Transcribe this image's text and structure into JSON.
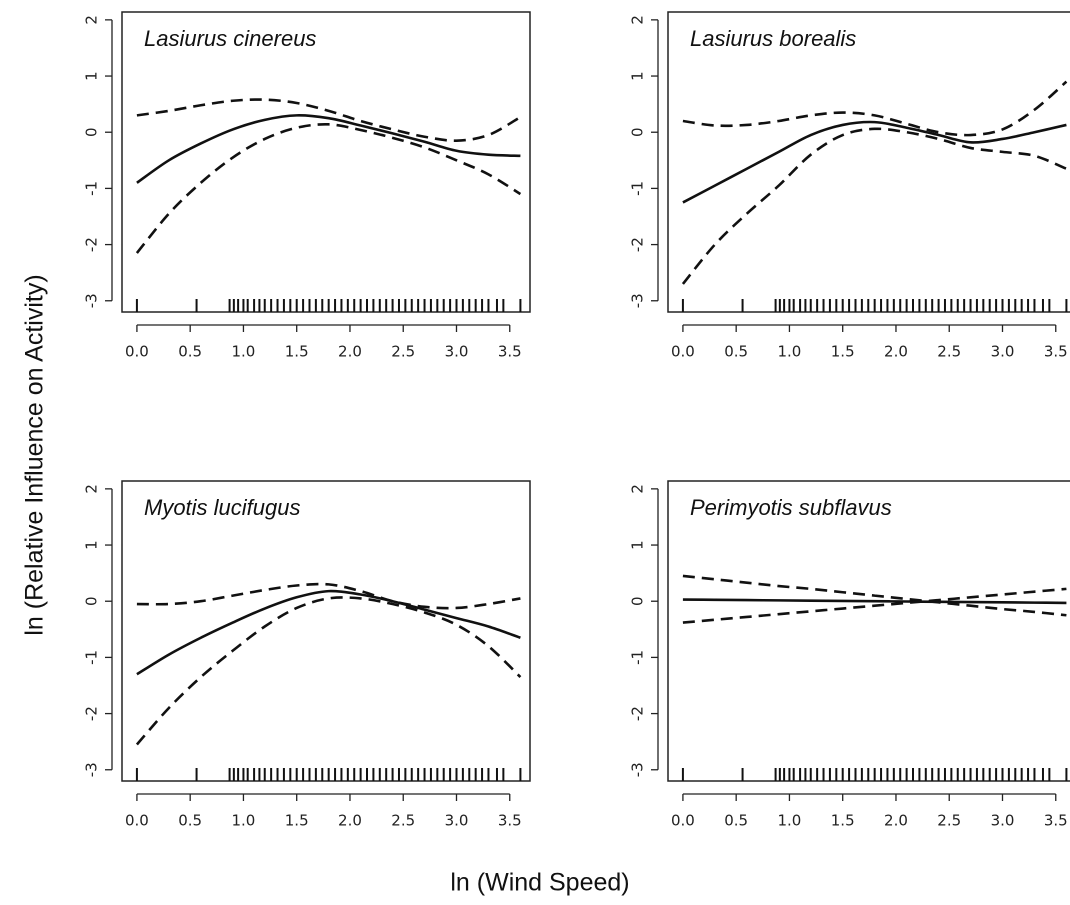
{
  "ylabel": "ln (Relative Influence on Activity)",
  "xlabel": "ln (Wind Speed)",
  "chart_data": [
    {
      "type": "line",
      "title": "Lasiurus cinereus",
      "x": [
        0,
        0.3,
        0.6,
        0.9,
        1.2,
        1.5,
        1.8,
        2.1,
        2.4,
        2.7,
        3.0,
        3.3,
        3.6
      ],
      "series": [
        {
          "style": "solid",
          "color": "#111111",
          "values": [
            -0.9,
            -0.5,
            -0.2,
            0.05,
            0.22,
            0.3,
            0.25,
            0.12,
            -0.02,
            -0.17,
            -0.33,
            -0.4,
            -0.42
          ]
        },
        {
          "style": "dashed",
          "color": "#111111",
          "values": [
            0.3,
            0.38,
            0.48,
            0.56,
            0.58,
            0.52,
            0.38,
            0.2,
            0.05,
            -0.08,
            -0.15,
            -0.05,
            0.27
          ]
        },
        {
          "style": "dashed",
          "color": "#111111",
          "values": [
            -2.15,
            -1.45,
            -0.9,
            -0.45,
            -0.12,
            0.08,
            0.14,
            0.04,
            -0.1,
            -0.27,
            -0.5,
            -0.75,
            -1.1
          ]
        }
      ],
      "rug": [
        0,
        0.56,
        0.87,
        0.91,
        0.95,
        1.0,
        1.04,
        1.1,
        1.15,
        1.2,
        1.26,
        1.32,
        1.38,
        1.44,
        1.5,
        1.56,
        1.62,
        1.68,
        1.74,
        1.8,
        1.86,
        1.92,
        1.98,
        2.04,
        2.1,
        2.16,
        2.22,
        2.28,
        2.34,
        2.4,
        2.46,
        2.52,
        2.58,
        2.64,
        2.7,
        2.76,
        2.82,
        2.88,
        2.94,
        3.0,
        3.06,
        3.12,
        3.18,
        3.24,
        3.3,
        3.38,
        3.44,
        3.6
      ],
      "xlim": [
        -0.14,
        3.69
      ],
      "ylim": [
        -3.2,
        2.14
      ],
      "xticks": [
        {
          "value": 0,
          "label": "0.0"
        },
        0.5,
        {
          "value": 1,
          "label": "1.0"
        },
        1.5,
        {
          "value": 2,
          "label": "2.0"
        },
        2.5,
        {
          "value": 3,
          "label": "3.0"
        },
        3.5
      ],
      "yticks": [
        -3,
        -2,
        -1,
        0,
        1,
        2
      ]
    },
    {
      "type": "line",
      "title": "Lasiurus borealis",
      "x": [
        0,
        0.3,
        0.6,
        0.9,
        1.2,
        1.5,
        1.8,
        2.1,
        2.4,
        2.7,
        3.0,
        3.3,
        3.6
      ],
      "series": [
        {
          "style": "solid",
          "color": "#111111",
          "values": [
            -1.25,
            -0.95,
            -0.65,
            -0.35,
            -0.05,
            0.13,
            0.18,
            0.08,
            -0.05,
            -0.18,
            -0.12,
            0.0,
            0.13
          ]
        },
        {
          "style": "dashed",
          "color": "#111111",
          "values": [
            0.2,
            0.12,
            0.13,
            0.2,
            0.3,
            0.35,
            0.3,
            0.15,
            0.0,
            -0.05,
            0.05,
            0.4,
            0.9
          ]
        },
        {
          "style": "dashed",
          "color": "#111111",
          "values": [
            -2.7,
            -2.0,
            -1.45,
            -0.95,
            -0.4,
            -0.05,
            0.06,
            0.0,
            -0.12,
            -0.28,
            -0.35,
            -0.42,
            -0.65
          ]
        }
      ],
      "rug": [
        0,
        0.56,
        0.87,
        0.91,
        0.95,
        1.0,
        1.04,
        1.1,
        1.15,
        1.2,
        1.26,
        1.32,
        1.38,
        1.44,
        1.5,
        1.56,
        1.62,
        1.68,
        1.74,
        1.8,
        1.86,
        1.92,
        1.98,
        2.04,
        2.1,
        2.16,
        2.22,
        2.28,
        2.34,
        2.4,
        2.46,
        2.52,
        2.58,
        2.64,
        2.7,
        2.76,
        2.82,
        2.88,
        2.94,
        3.0,
        3.06,
        3.12,
        3.18,
        3.24,
        3.3,
        3.38,
        3.44,
        3.6
      ],
      "xlim": [
        -0.14,
        3.69
      ],
      "ylim": [
        -3.2,
        2.14
      ],
      "xticks": [
        {
          "value": 0,
          "label": "0.0"
        },
        0.5,
        {
          "value": 1,
          "label": "1.0"
        },
        1.5,
        {
          "value": 2,
          "label": "2.0"
        },
        2.5,
        {
          "value": 3,
          "label": "3.0"
        },
        3.5
      ],
      "yticks": [
        -3,
        -2,
        -1,
        0,
        1,
        2
      ]
    },
    {
      "type": "line",
      "title": "Myotis lucifugus",
      "x": [
        0,
        0.3,
        0.6,
        0.9,
        1.2,
        1.5,
        1.8,
        2.1,
        2.4,
        2.7,
        3.0,
        3.3,
        3.6
      ],
      "series": [
        {
          "style": "solid",
          "color": "#111111",
          "values": [
            -1.3,
            -0.95,
            -0.65,
            -0.38,
            -0.13,
            0.07,
            0.18,
            0.12,
            0.0,
            -0.15,
            -0.3,
            -0.45,
            -0.65
          ]
        },
        {
          "style": "dashed",
          "color": "#111111",
          "values": [
            -0.05,
            -0.05,
            0.0,
            0.1,
            0.2,
            0.28,
            0.3,
            0.18,
            0.0,
            -0.1,
            -0.12,
            -0.05,
            0.05
          ]
        },
        {
          "style": "dashed",
          "color": "#111111",
          "values": [
            -2.55,
            -1.9,
            -1.35,
            -0.88,
            -0.45,
            -0.12,
            0.05,
            0.05,
            -0.05,
            -0.2,
            -0.42,
            -0.8,
            -1.35
          ]
        }
      ],
      "rug": [
        0,
        0.56,
        0.87,
        0.91,
        0.95,
        1.0,
        1.04,
        1.1,
        1.15,
        1.2,
        1.26,
        1.32,
        1.38,
        1.44,
        1.5,
        1.56,
        1.62,
        1.68,
        1.74,
        1.8,
        1.86,
        1.92,
        1.98,
        2.04,
        2.1,
        2.16,
        2.22,
        2.28,
        2.34,
        2.4,
        2.46,
        2.52,
        2.58,
        2.64,
        2.7,
        2.76,
        2.82,
        2.88,
        2.94,
        3.0,
        3.06,
        3.12,
        3.18,
        3.24,
        3.3,
        3.38,
        3.44,
        3.6
      ],
      "xlim": [
        -0.14,
        3.69
      ],
      "ylim": [
        -3.2,
        2.14
      ],
      "xticks": [
        {
          "value": 0,
          "label": "0.0"
        },
        0.5,
        {
          "value": 1,
          "label": "1.0"
        },
        1.5,
        {
          "value": 2,
          "label": "2.0"
        },
        2.5,
        {
          "value": 3,
          "label": "3.0"
        },
        3.5
      ],
      "yticks": [
        -3,
        -2,
        -1,
        0,
        1,
        2
      ]
    },
    {
      "type": "line",
      "title": "Perimyotis subflavus",
      "x": [
        0,
        0.3,
        0.6,
        0.9,
        1.2,
        1.5,
        1.8,
        2.1,
        2.4,
        2.7,
        3.0,
        3.3,
        3.6
      ],
      "series": [
        {
          "style": "solid",
          "color": "#111111",
          "values": [
            0.03,
            0.025,
            0.02,
            0.015,
            0.01,
            0.005,
            0.0,
            -0.005,
            -0.01,
            -0.015,
            -0.02,
            -0.025,
            -0.03
          ]
        },
        {
          "style": "dashed",
          "color": "#111111",
          "values": [
            0.45,
            0.39,
            0.33,
            0.27,
            0.22,
            0.16,
            0.1,
            0.04,
            -0.02,
            -0.08,
            -0.14,
            -0.19,
            -0.25
          ]
        },
        {
          "style": "dashed",
          "color": "#111111",
          "values": [
            -0.38,
            -0.33,
            -0.28,
            -0.23,
            -0.18,
            -0.13,
            -0.08,
            -0.03,
            0.02,
            0.07,
            0.12,
            0.17,
            0.22
          ]
        }
      ],
      "rug": [
        0,
        0.56,
        0.87,
        0.91,
        0.95,
        1.0,
        1.04,
        1.1,
        1.15,
        1.2,
        1.26,
        1.32,
        1.38,
        1.44,
        1.5,
        1.56,
        1.62,
        1.68,
        1.74,
        1.8,
        1.86,
        1.92,
        1.98,
        2.04,
        2.1,
        2.16,
        2.22,
        2.28,
        2.34,
        2.4,
        2.46,
        2.52,
        2.58,
        2.64,
        2.7,
        2.76,
        2.82,
        2.88,
        2.94,
        3.0,
        3.06,
        3.12,
        3.18,
        3.24,
        3.3,
        3.38,
        3.44,
        3.6
      ],
      "xlim": [
        -0.14,
        3.69
      ],
      "ylim": [
        -3.2,
        2.14
      ],
      "xticks": [
        {
          "value": 0,
          "label": "0.0"
        },
        0.5,
        {
          "value": 1,
          "label": "1.0"
        },
        1.5,
        {
          "value": 2,
          "label": "2.0"
        },
        2.5,
        {
          "value": 3,
          "label": "3.0"
        },
        3.5
      ],
      "yticks": [
        -3,
        -2,
        -1,
        0,
        1,
        2
      ]
    }
  ]
}
